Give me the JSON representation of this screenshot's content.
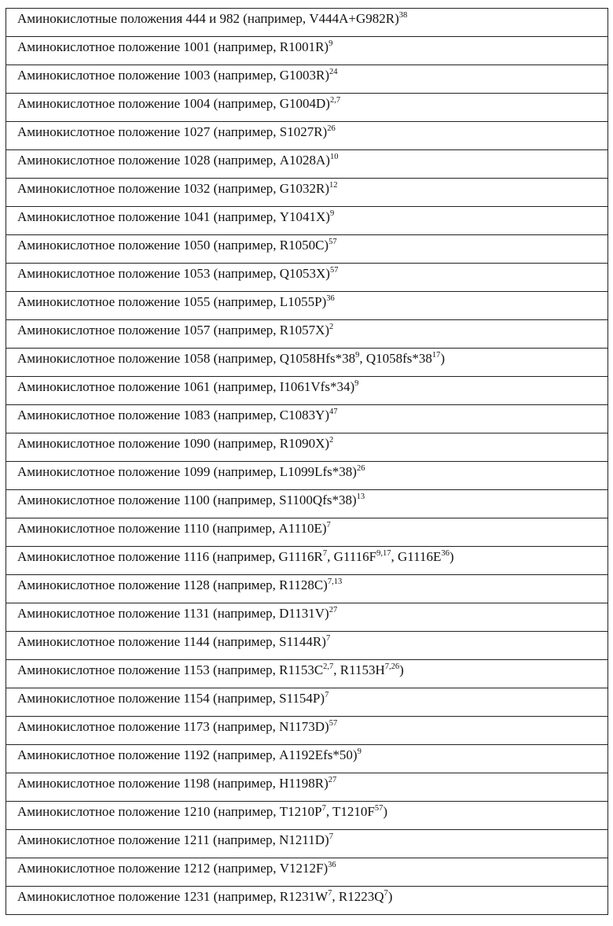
{
  "rows": [
    [
      {
        "t": "Аминокислотные положения 444 и 982 (например, V444A+G982R)"
      },
      {
        "s": "38"
      }
    ],
    [
      {
        "t": "Аминокислотное положение 1001 (например, R1001R)"
      },
      {
        "s": "9"
      }
    ],
    [
      {
        "t": "Аминокислотное положение 1003 (например, G1003R)"
      },
      {
        "s": "24"
      }
    ],
    [
      {
        "t": "Аминокислотное положение 1004 (например, G1004D)"
      },
      {
        "s": "2,7"
      }
    ],
    [
      {
        "t": "Аминокислотное положение 1027 (например, S1027R)"
      },
      {
        "s": "26"
      }
    ],
    [
      {
        "t": "Аминокислотное положение 1028 (например, A1028A)"
      },
      {
        "s": "10"
      }
    ],
    [
      {
        "t": "Аминокислотное положение 1032 (например, G1032R)"
      },
      {
        "s": "12"
      }
    ],
    [
      {
        "t": "Аминокислотное положение 1041 (например, Y1041X)"
      },
      {
        "s": "9"
      }
    ],
    [
      {
        "t": "Аминокислотное положение 1050 (например, R1050C)"
      },
      {
        "s": "57"
      }
    ],
    [
      {
        "t": "Аминокислотное положение 1053 (например, Q1053X)"
      },
      {
        "s": "57"
      }
    ],
    [
      {
        "t": "Аминокислотное положение 1055 (например, L1055P)"
      },
      {
        "s": "36"
      }
    ],
    [
      {
        "t": "Аминокислотное положение 1057 (например, R1057X)"
      },
      {
        "s": "2"
      }
    ],
    [
      {
        "t": "Аминокислотное положение 1058 (например, Q1058Hfs*38"
      },
      {
        "s": "9"
      },
      {
        "t": ", Q1058fs*38"
      },
      {
        "s": "17"
      },
      {
        "t": ")"
      }
    ],
    [
      {
        "t": "Аминокислотное положение 1061 (например, I1061Vfs*34)"
      },
      {
        "s": "9"
      }
    ],
    [
      {
        "t": "Аминокислотное положение 1083 (например, C1083Y)"
      },
      {
        "s": "47"
      }
    ],
    [
      {
        "t": "Аминокислотное положение 1090 (например, R1090X)"
      },
      {
        "s": "2"
      }
    ],
    [
      {
        "t": "Аминокислотное положение 1099 (например, L1099Lfs*38)"
      },
      {
        "s": "26"
      }
    ],
    [
      {
        "t": "Аминокислотное положение 1100 (например, S1100Qfs*38)"
      },
      {
        "s": "13"
      }
    ],
    [
      {
        "t": "Аминокислотное положение 1110 (например, A1110E)"
      },
      {
        "s": "7"
      }
    ],
    [
      {
        "t": "Аминокислотное положение 1116 (например, G1116R"
      },
      {
        "s": "7"
      },
      {
        "t": ", G1116F"
      },
      {
        "s": "9,17"
      },
      {
        "t": ", G1116E"
      },
      {
        "s": "36"
      },
      {
        "t": ")"
      }
    ],
    [
      {
        "t": "Аминокислотное положение 1128 (например, R1128C)"
      },
      {
        "s": "7,13"
      }
    ],
    [
      {
        "t": "Аминокислотное положение 1131 (например, D1131V)"
      },
      {
        "s": "27"
      }
    ],
    [
      {
        "t": "Аминокислотное положение 1144 (например, S1144R)"
      },
      {
        "s": "7"
      }
    ],
    [
      {
        "t": "Аминокислотное положение 1153 (например, R1153C"
      },
      {
        "s": "2,7"
      },
      {
        "t": ", R1153H"
      },
      {
        "s": "7,26"
      },
      {
        "t": ")"
      }
    ],
    [
      {
        "t": "Аминокислотное положение 1154 (например, S1154P)"
      },
      {
        "s": "7"
      }
    ],
    [
      {
        "t": "Аминокислотное положение 1173 (например, N1173D)"
      },
      {
        "s": "57"
      }
    ],
    [
      {
        "t": "Аминокислотное положение 1192 (например, A1192Efs*50)"
      },
      {
        "s": "9"
      }
    ],
    [
      {
        "t": "Аминокислотное положение 1198 (например, H1198R)"
      },
      {
        "s": "27"
      }
    ],
    [
      {
        "t": "Аминокислотное положение 1210 (например, T1210P"
      },
      {
        "s": "7"
      },
      {
        "t": ", T1210F"
      },
      {
        "s": "57"
      },
      {
        "t": ")"
      }
    ],
    [
      {
        "t": "Аминокислотное положение 1211 (например, N1211D)"
      },
      {
        "s": "7"
      }
    ],
    [
      {
        "t": "Аминокислотное положение 1212 (например, V1212F)"
      },
      {
        "s": "36"
      }
    ],
    [
      {
        "t": "Аминокислотное положение 1231 (например, R1231W"
      },
      {
        "s": "7"
      },
      {
        "t": ", R1223Q"
      },
      {
        "s": "7"
      },
      {
        "t": ")"
      }
    ]
  ]
}
